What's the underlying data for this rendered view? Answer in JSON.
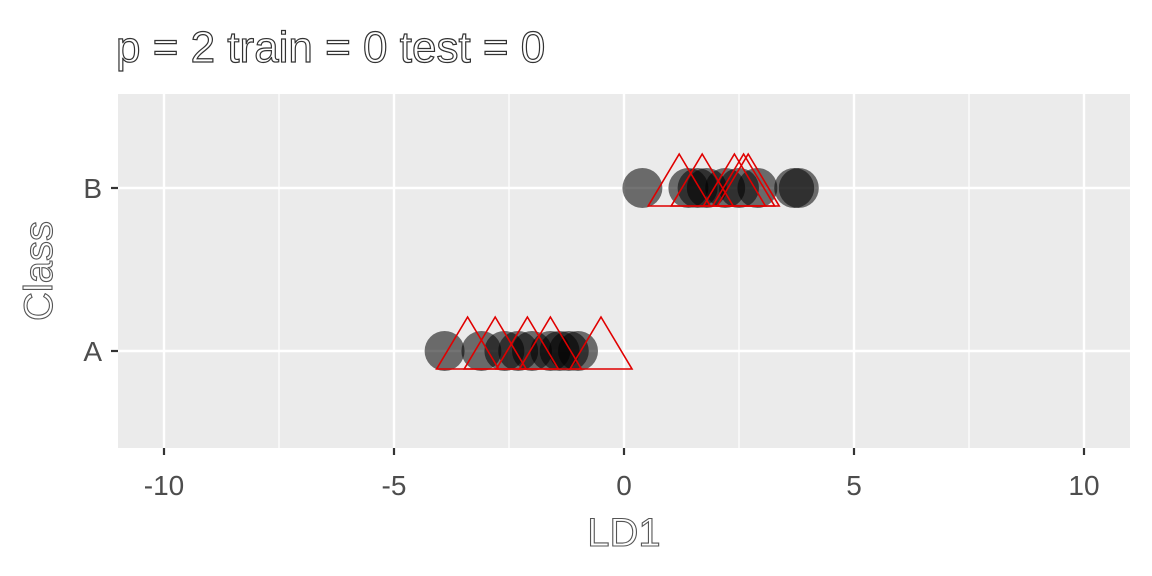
{
  "chart_data": {
    "type": "scatter",
    "title": "p = 2 train = 0 test = 0",
    "xlabel": "LD1",
    "ylabel": "Class",
    "xlim": [
      -11,
      11
    ],
    "x_ticks": [
      -10,
      -5,
      0,
      5,
      10
    ],
    "x_tick_labels": [
      "-10",
      "-5",
      "0",
      "5",
      "10"
    ],
    "categories": [
      "A",
      "B"
    ],
    "grid": true,
    "background": "#ebebeb",
    "series": [
      {
        "marker": "circle",
        "color": "#000000",
        "opacity": 0.55,
        "points": [
          {
            "x": -3.9,
            "y": "A"
          },
          {
            "x": -3.1,
            "y": "A"
          },
          {
            "x": -2.6,
            "y": "A"
          },
          {
            "x": -2.3,
            "y": "A"
          },
          {
            "x": -2.0,
            "y": "A"
          },
          {
            "x": -1.6,
            "y": "A"
          },
          {
            "x": -1.4,
            "y": "A"
          },
          {
            "x": -1.2,
            "y": "A"
          },
          {
            "x": -1.0,
            "y": "A"
          },
          {
            "x": 0.4,
            "y": "B"
          },
          {
            "x": 1.4,
            "y": "B"
          },
          {
            "x": 1.6,
            "y": "B"
          },
          {
            "x": 1.8,
            "y": "B"
          },
          {
            "x": 2.2,
            "y": "B"
          },
          {
            "x": 2.5,
            "y": "B"
          },
          {
            "x": 2.9,
            "y": "B"
          },
          {
            "x": 3.7,
            "y": "B"
          },
          {
            "x": 3.8,
            "y": "B"
          }
        ]
      },
      {
        "marker": "triangle",
        "color": "#e00000",
        "points": [
          {
            "x": -3.4,
            "y": "A"
          },
          {
            "x": -2.8,
            "y": "A"
          },
          {
            "x": -2.1,
            "y": "A"
          },
          {
            "x": -1.6,
            "y": "A"
          },
          {
            "x": -0.5,
            "y": "A"
          },
          {
            "x": 1.2,
            "y": "B"
          },
          {
            "x": 1.7,
            "y": "B"
          },
          {
            "x": 2.4,
            "y": "B"
          },
          {
            "x": 2.6,
            "y": "B"
          },
          {
            "x": 2.7,
            "y": "B"
          }
        ]
      }
    ]
  }
}
